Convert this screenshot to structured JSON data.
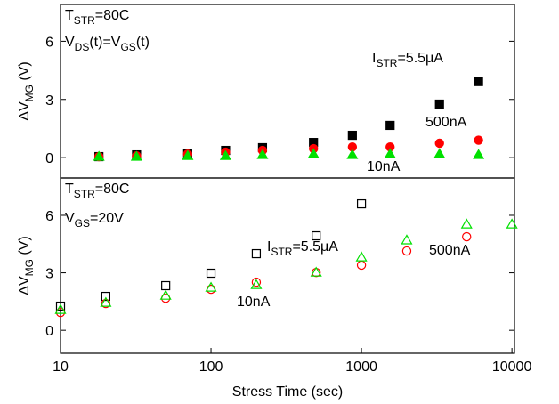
{
  "chart_data": [
    {
      "type": "scatter",
      "y_label": [
        "ΔV",
        "MG",
        " (V)"
      ],
      "annotations": [
        [
          "T",
          "STR",
          "=80C"
        ],
        [
          "V",
          "DS",
          "(t)=V",
          "GS",
          "(t)"
        ]
      ],
      "xscale": "log",
      "xlim": [
        10,
        10400
      ],
      "ylim": [
        -1.05,
        7.9
      ],
      "yticks": [
        0,
        3,
        6
      ],
      "series": [
        {
          "name": [
            "I",
            "STR",
            "=5.5μA"
          ],
          "color": "#000000",
          "marker": "square",
          "fill": "filled",
          "x": [
            18,
            32,
            70,
            125,
            220,
            480,
            870,
            1550,
            3300,
            6000
          ],
          "values": [
            0.05,
            0.14,
            0.23,
            0.37,
            0.51,
            0.78,
            1.15,
            1.66,
            2.76,
            3.92
          ]
        },
        {
          "name": [
            "500nA"
          ],
          "color": "#ff0000",
          "marker": "circle",
          "fill": "filled",
          "x": [
            18,
            32,
            70,
            125,
            220,
            480,
            870,
            1550,
            3300,
            6000
          ],
          "values": [
            0.05,
            0.09,
            0.18,
            0.28,
            0.37,
            0.46,
            0.55,
            0.55,
            0.74,
            0.9
          ]
        },
        {
          "name": [
            "10nA"
          ],
          "color": "#00e000",
          "marker": "triangle",
          "fill": "filled",
          "x": [
            18,
            32,
            70,
            125,
            220,
            480,
            870,
            1550,
            3300,
            6000
          ],
          "values": [
            0.05,
            0.05,
            0.09,
            0.09,
            0.14,
            0.18,
            0.14,
            0.18,
            0.18,
            0.14
          ]
        }
      ]
    },
    {
      "type": "scatter",
      "y_label": [
        "ΔV",
        "MG",
        " (V)"
      ],
      "x_label": "Stress Time (sec)",
      "annotations": [
        [
          "T",
          "STR",
          "=80C"
        ],
        [
          "V",
          "GS",
          "=20V"
        ]
      ],
      "xscale": "log",
      "xlim": [
        10,
        10400
      ],
      "xticks": [
        10,
        100,
        1000,
        10000
      ],
      "ylim": [
        -1.2,
        7.95
      ],
      "yticks": [
        0,
        3,
        6
      ],
      "series": [
        {
          "name": [
            "I",
            "STR",
            "=5.5μA"
          ],
          "color": "#000000",
          "marker": "square",
          "fill": "open",
          "x": [
            10,
            20,
            50,
            100,
            200,
            500,
            1000
          ],
          "values": [
            1.26,
            1.77,
            2.33,
            2.98,
            4.0,
            4.93,
            6.6
          ]
        },
        {
          "name": [
            "500nA"
          ],
          "color": "#ff0000",
          "marker": "circle",
          "fill": "open",
          "x": [
            10,
            20,
            50,
            100,
            200,
            500,
            1000,
            2000,
            5000
          ],
          "values": [
            0.93,
            1.4,
            1.67,
            2.14,
            2.51,
            3.02,
            3.4,
            4.14,
            4.88
          ]
        },
        {
          "name": [
            "10nA"
          ],
          "color": "#00e000",
          "marker": "triangle",
          "fill": "open",
          "x": [
            10,
            20,
            50,
            100,
            200,
            500,
            1000,
            2000,
            5000,
            10000
          ],
          "values": [
            1.07,
            1.44,
            1.81,
            2.23,
            2.37,
            3.02,
            3.81,
            4.7,
            5.53,
            5.53
          ]
        }
      ]
    }
  ]
}
